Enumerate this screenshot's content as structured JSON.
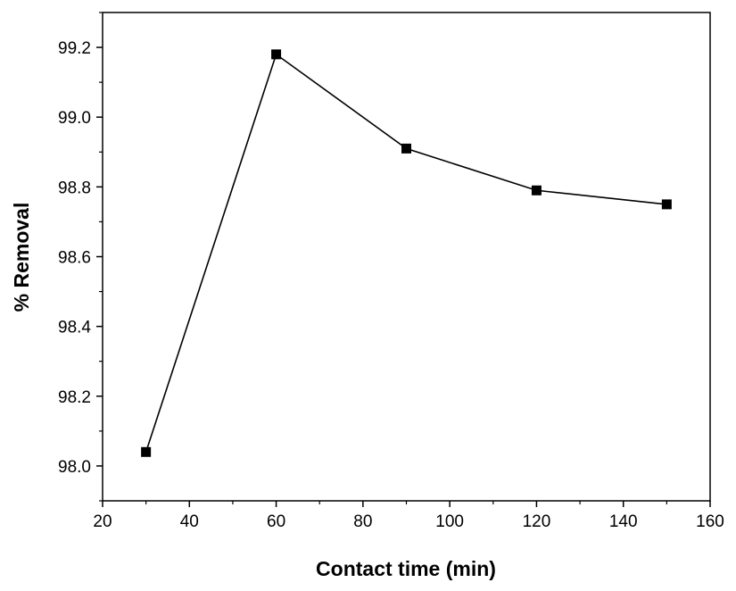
{
  "chart_data": {
    "type": "line",
    "xlabel": "Contact time (min)",
    "ylabel": "% Removal",
    "xlim": [
      20,
      160
    ],
    "ylim": [
      97.9,
      99.3
    ],
    "xticks": [
      20,
      40,
      60,
      80,
      100,
      120,
      140,
      160
    ],
    "yticks": [
      98.0,
      98.2,
      98.4,
      98.6,
      98.8,
      99.0,
      99.2
    ],
    "ytick_labels": [
      "98.0",
      "98.2",
      "98.4",
      "98.6",
      "98.8",
      "99.0",
      "99.2"
    ],
    "grid": false,
    "marker": "square",
    "color": "#000000",
    "series": [
      {
        "x": [
          30,
          60,
          90,
          120,
          150
        ],
        "y": [
          98.04,
          99.18,
          98.91,
          98.79,
          98.75
        ]
      }
    ]
  }
}
